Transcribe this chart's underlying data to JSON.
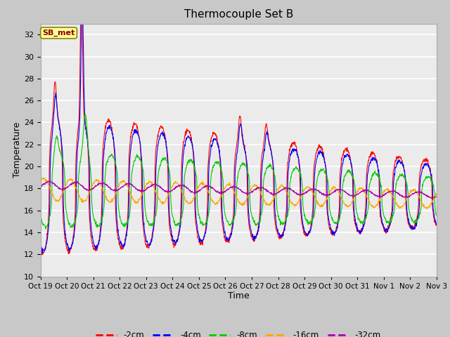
{
  "title": "Thermocouple Set B",
  "xlabel": "Time",
  "ylabel": "Temperature",
  "ylim": [
    10,
    33
  ],
  "yticks": [
    10,
    12,
    14,
    16,
    18,
    20,
    22,
    24,
    26,
    28,
    30,
    32
  ],
  "plot_bg_color": "#ebebeb",
  "annotation_text": "SB_met",
  "annotation_bg": "#ffff99",
  "annotation_border": "#888800",
  "annotation_text_color": "#8b0000",
  "series_colors": {
    "-2cm": "#ff0000",
    "-4cm": "#0000ff",
    "-8cm": "#00cc00",
    "-16cm": "#ffa500",
    "-32cm": "#aa00aa"
  },
  "tick_labels": [
    "Oct 19",
    "Oct 20",
    "Oct 21",
    "Oct 22",
    "Oct 23",
    "Oct 24",
    "Oct 25",
    "Oct 26",
    "Oct 27",
    "Oct 28",
    "Oct 29",
    "Oct 30",
    "Oct 31",
    "Nov 1",
    "Nov 2",
    "Nov 3"
  ]
}
